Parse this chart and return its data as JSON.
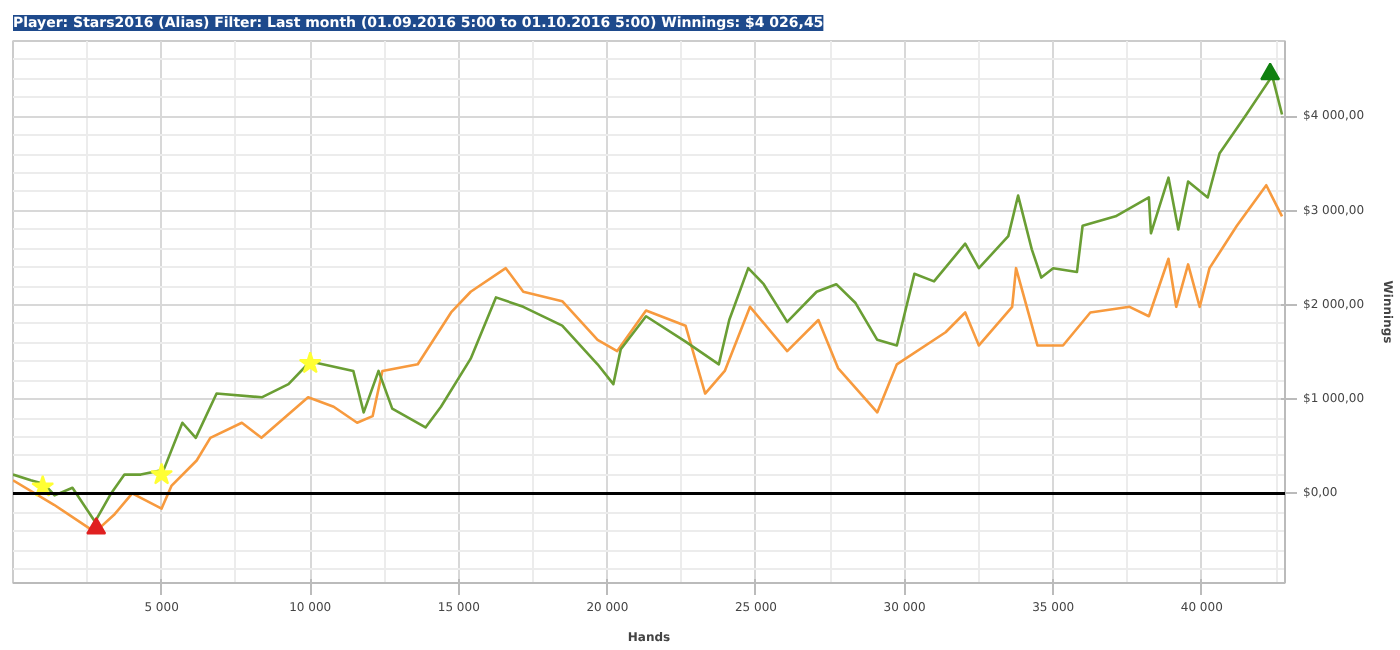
{
  "chart_data": {
    "type": "line",
    "title": "Player: Stars2016 (Alias) Filter: Last month (01.09.2016 5:00 to 01.10.2016 5:00) Winnings: $4 026,45",
    "xlabel": "Hands",
    "ylabel": "Winnings",
    "xlim": [
      0,
      42800
    ],
    "ylim": [
      -950,
      4800
    ],
    "xticks": [
      {
        "value": 5000,
        "label": "5 000"
      },
      {
        "value": 10000,
        "label": "10 000"
      },
      {
        "value": 15000,
        "label": "15 000"
      },
      {
        "value": 20000,
        "label": "20 000"
      },
      {
        "value": 25000,
        "label": "25 000"
      },
      {
        "value": 30000,
        "label": "30 000"
      },
      {
        "value": 35000,
        "label": "35 000"
      },
      {
        "value": 40000,
        "label": "40 000"
      }
    ],
    "yticks": [
      {
        "value": 0,
        "label": "$0,00"
      },
      {
        "value": 1000,
        "label": "$1 000,00"
      },
      {
        "value": 2000,
        "label": "$2 000,00"
      },
      {
        "value": 3000,
        "label": "$3 000,00"
      },
      {
        "value": 4000,
        "label": "$4 000,00"
      }
    ],
    "grid": true,
    "ref_lines": [
      {
        "axis": "y",
        "value": 0,
        "color": "#000000"
      }
    ],
    "series": [
      {
        "color": "#f79a3e",
        "x": [
          0,
          1380,
          2760,
          3420,
          4010,
          5000,
          5330,
          6180,
          6640,
          7700,
          8360,
          9930,
          10790,
          11580,
          12100,
          12430,
          13620,
          14740,
          15400,
          16580,
          17170,
          18480,
          19670,
          20330,
          21300,
          22630,
          23290,
          23950,
          24800,
          26050,
          27100,
          27760,
          29080,
          29740,
          31380,
          32040,
          32500,
          33620,
          33750,
          34470,
          35330,
          36250,
          37570,
          38220,
          38880,
          39140,
          39540,
          39930,
          40260,
          41180,
          42170,
          42700
        ],
        "values": [
          140,
          -120,
          -410,
          -220,
          0,
          -160,
          80,
          350,
          590,
          750,
          590,
          1020,
          920,
          750,
          820,
          1300,
          1370,
          1920,
          2140,
          2390,
          2140,
          2040,
          1630,
          1510,
          1940,
          1780,
          1060,
          1300,
          1980,
          1510,
          1840,
          1330,
          860,
          1370,
          1710,
          1920,
          1570,
          1980,
          2390,
          1570,
          1570,
          1920,
          1980,
          1880,
          2490,
          1980,
          2430,
          1980,
          2390,
          2840,
          3270,
          2940
        ]
      },
      {
        "color": "#6a9e34",
        "x": [
          0,
          600,
          1050,
          1400,
          2000,
          2760,
          3300,
          3750,
          4300,
          5070,
          5700,
          6150,
          6850,
          8370,
          9270,
          10000,
          11450,
          11800,
          12300,
          12760,
          13880,
          14400,
          15400,
          16250,
          17170,
          18480,
          19670,
          20200,
          20450,
          21300,
          22630,
          23750,
          24100,
          24740,
          25260,
          26050,
          27040,
          27700,
          28350,
          29080,
          29740,
          30330,
          30990,
          32040,
          32500,
          33490,
          33820,
          34280,
          34600,
          35000,
          35800,
          35990,
          37100,
          38220,
          38290,
          38880,
          39210,
          39540,
          40200,
          40600,
          41500,
          42370,
          42700
        ],
        "values": [
          200,
          140,
          100,
          -20,
          60,
          -300,
          0,
          200,
          200,
          250,
          750,
          590,
          1060,
          1020,
          1160,
          1400,
          1300,
          860,
          1300,
          900,
          700,
          920,
          1430,
          2080,
          1980,
          1780,
          1370,
          1160,
          1530,
          1880,
          1610,
          1370,
          1840,
          2390,
          2220,
          1820,
          2140,
          2220,
          2020,
          1630,
          1570,
          2330,
          2250,
          2650,
          2390,
          2730,
          3160,
          2590,
          2290,
          2390,
          2350,
          2840,
          2940,
          3140,
          2760,
          3350,
          2800,
          3310,
          3140,
          3610,
          4020,
          4430,
          4020
        ]
      },
      {
        "type": "scatter",
        "marker": "star",
        "color": "#ffff33",
        "x": [
          1000,
          5000,
          10000
        ],
        "values": [
          70,
          200,
          1380
        ]
      },
      {
        "type": "scatter",
        "marker": "triangle",
        "color": "#e02020",
        "x": [
          2800
        ],
        "values": [
          -370
        ]
      },
      {
        "type": "scatter",
        "marker": "triangle",
        "color": "#108010",
        "x": [
          42300
        ],
        "values": [
          4450
        ]
      }
    ]
  }
}
